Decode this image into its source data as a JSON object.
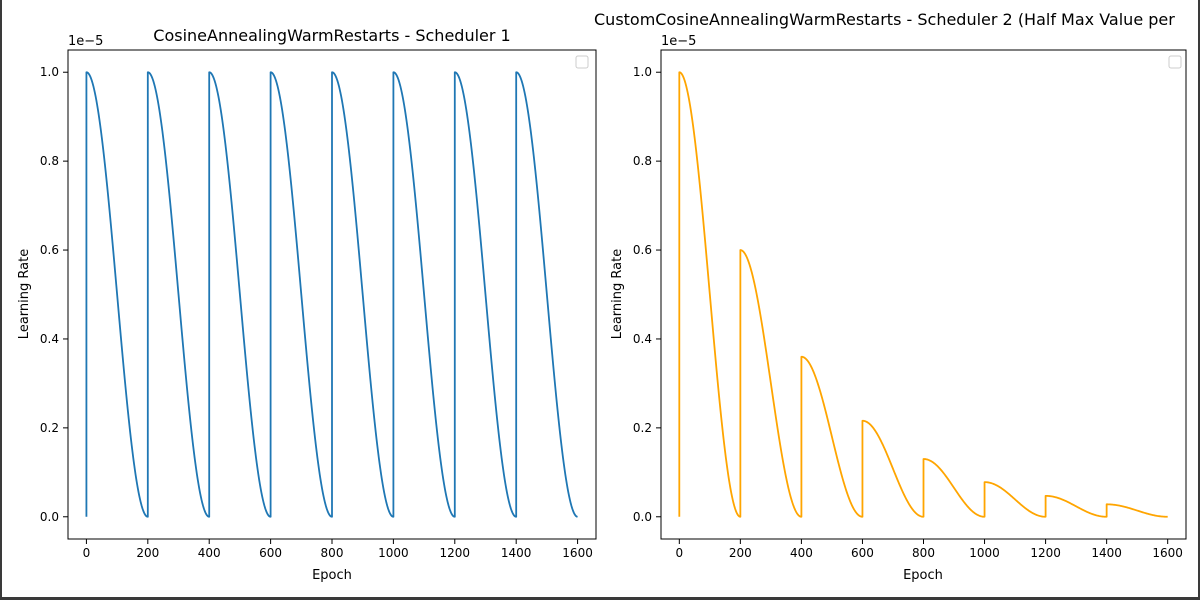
{
  "chart_data": [
    {
      "type": "line",
      "title": "CosineAnnealingWarmRestarts - Scheduler 1",
      "xlabel": "Epoch",
      "ylabel": "Learning Rate",
      "y_offset_label": "1e−5",
      "xlim": [
        -60,
        1660
      ],
      "ylim": [
        -0.05,
        1.05
      ],
      "y_scale_factor": 1e-05,
      "xticks": [
        0,
        200,
        400,
        600,
        800,
        1000,
        1200,
        1400,
        1600
      ],
      "yticks": [
        0.0,
        0.2,
        0.4,
        0.6,
        0.8,
        1.0
      ],
      "ytick_labels": [
        "0.0",
        "0.2",
        "0.4",
        "0.6",
        "0.8",
        "1.0"
      ],
      "grid": false,
      "legend": "upper-right, empty",
      "series": [
        {
          "color": "#1f77b4",
          "restart_period": 200,
          "restarts": [
            0,
            200,
            400,
            600,
            800,
            1000,
            1200,
            1400
          ],
          "cycle_peaks": [
            1.0,
            1.0,
            1.0,
            1.0,
            1.0,
            1.0,
            1.0,
            1.0
          ],
          "x_end": 1600,
          "start_value": 0.0,
          "min_value": 0.0
        }
      ]
    },
    {
      "type": "line",
      "title": "CustomCosineAnnealingWarmRestarts - Scheduler 2 (Half Max Value per",
      "xlabel": "Epoch",
      "ylabel": "Learning Rate",
      "y_offset_label": "1e−5",
      "xlim": [
        -60,
        1660
      ],
      "ylim": [
        -0.05,
        1.05
      ],
      "y_scale_factor": 1e-05,
      "xticks": [
        0,
        200,
        400,
        600,
        800,
        1000,
        1200,
        1400,
        1600
      ],
      "yticks": [
        0.0,
        0.2,
        0.4,
        0.6,
        0.8,
        1.0
      ],
      "ytick_labels": [
        "0.0",
        "0.2",
        "0.4",
        "0.6",
        "0.8",
        "1.0"
      ],
      "grid": false,
      "legend": "upper-right, empty",
      "series": [
        {
          "color": "#ffa500",
          "restart_period": 200,
          "restarts": [
            0,
            200,
            400,
            600,
            800,
            1000,
            1200,
            1400
          ],
          "cycle_peaks": [
            1.0,
            0.6,
            0.36,
            0.216,
            0.13,
            0.078,
            0.047,
            0.028
          ],
          "x_end": 1600,
          "start_value": 0.0,
          "min_value": 0.0
        }
      ]
    }
  ]
}
